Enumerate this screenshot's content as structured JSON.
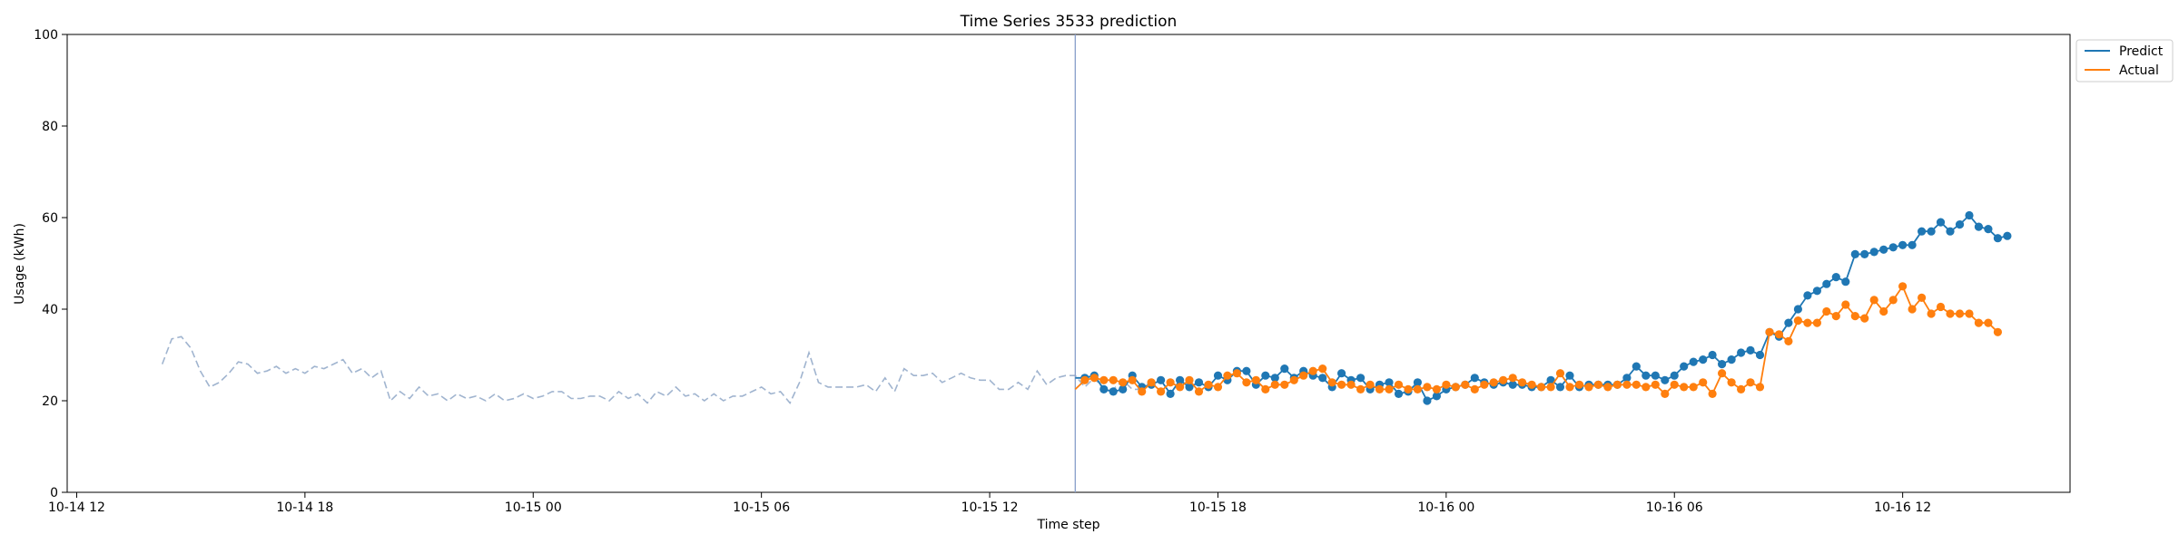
{
  "chart_data": {
    "type": "line",
    "title": "Time Series 3533 prediction",
    "xlabel": "Time step",
    "ylabel": "Usage (kWh)",
    "ylim": [
      0,
      100
    ],
    "yticks": [
      0,
      20,
      40,
      60,
      80,
      100
    ],
    "x_unit": "hours since 10-14 12:00",
    "xlim": [
      -0.25,
      52.4
    ],
    "xticks": [
      {
        "pos": 0,
        "label": "10-14 12"
      },
      {
        "pos": 6,
        "label": "10-14 18"
      },
      {
        "pos": 12,
        "label": "10-15 00"
      },
      {
        "pos": 18,
        "label": "10-15 06"
      },
      {
        "pos": 24,
        "label": "10-15 12"
      },
      {
        "pos": 30,
        "label": "10-15 18"
      },
      {
        "pos": 36,
        "label": "10-16 00"
      },
      {
        "pos": 42,
        "label": "10-16 06"
      },
      {
        "pos": 48,
        "label": "10-16 12"
      }
    ],
    "split_x": 26.25,
    "history": {
      "start": 2.25,
      "step": 0.25,
      "values": [
        28,
        33.5,
        34,
        31.5,
        26.5,
        23,
        24,
        26,
        28.5,
        28,
        26,
        26.5,
        27.5,
        26,
        27,
        26,
        27.5,
        27,
        28,
        29,
        26,
        27,
        25,
        26.5,
        20,
        22,
        20.5,
        23,
        21,
        21.5,
        20,
        21.5,
        20.5,
        21,
        20,
        21.5,
        20,
        20.5,
        21.5,
        20.5,
        21,
        22,
        22,
        20.5,
        20.5,
        21,
        21,
        20,
        22,
        20.5,
        21.5,
        19.5,
        22,
        21,
        23,
        21,
        21.5,
        20,
        21.5,
        20,
        21,
        21,
        22,
        23,
        21.5,
        22,
        19.5,
        24,
        30.5,
        24,
        23,
        23,
        23,
        23,
        23.5,
        22,
        25,
        22,
        27,
        25.5,
        25.5,
        26,
        24,
        25,
        26,
        25,
        24.5,
        24.5,
        22.5,
        22.5,
        24,
        22.5,
        26.5,
        23.5,
        25,
        25.5,
        25.5,
        23,
        25,
        22.5,
        22.5,
        24.5,
        22.5,
        22.5
      ]
    },
    "series": [
      {
        "name": "Predict",
        "color": "#1f77b4",
        "start": 26.25,
        "step": 0.25,
        "values": [
          25,
          25,
          25.5,
          22.5,
          22,
          22.5,
          25.5,
          23,
          23.5,
          24.5,
          21.5,
          24.5,
          23,
          24,
          23,
          25.5,
          24.5,
          26.5,
          26.5,
          23.5,
          25.5,
          25,
          27,
          25,
          26.5,
          25.5,
          25,
          23,
          26,
          24.5,
          25,
          22.5,
          23.5,
          24,
          21.5,
          22,
          24,
          20,
          21,
          22.5,
          23,
          23.5,
          25,
          24,
          23.5,
          24,
          23.5,
          23.5,
          23,
          23,
          24.5,
          23,
          25.5,
          23,
          23.5,
          23.5,
          23.5,
          23.5,
          25,
          27.5,
          25.5,
          25.5,
          24.5,
          25.5,
          27.5,
          28.5,
          29,
          30,
          28,
          29,
          30.5,
          31,
          30,
          35,
          34,
          37,
          40,
          43,
          44,
          45.5,
          47,
          46,
          52,
          52,
          52.5,
          53,
          53.5,
          54,
          54,
          57,
          57,
          59,
          57,
          58.5,
          60.5,
          58,
          57.5,
          55.5,
          56
        ]
      },
      {
        "name": "Actual",
        "color": "#ff7f0e",
        "start": 26.25,
        "step": 0.25,
        "values": [
          22.5,
          24.5,
          25,
          24.5,
          24.5,
          24,
          24.5,
          22,
          24,
          22,
          24,
          23,
          24.5,
          22,
          23.5,
          23,
          25.5,
          26,
          24,
          24.5,
          22.5,
          23.5,
          23.5,
          24.5,
          25.5,
          26.5,
          27,
          24,
          23.5,
          23.5,
          22.5,
          23.5,
          22.5,
          22.5,
          23.5,
          22.5,
          22.5,
          23,
          22.5,
          23.5,
          23,
          23.5,
          22.5,
          23.5,
          24,
          24.5,
          25,
          24,
          23.5,
          23,
          23,
          26,
          23,
          23.5,
          23,
          23.5,
          23,
          23.5,
          23.5,
          23.5,
          23,
          23.5,
          21.5,
          23.5,
          23,
          23,
          24,
          21.5,
          26,
          24,
          22.5,
          24,
          23,
          35,
          34.5,
          33,
          37.5,
          37,
          37,
          39.5,
          38.5,
          41,
          38.5,
          38,
          42,
          39.5,
          42,
          45,
          40,
          42.5,
          39,
          40.5,
          39,
          39,
          39,
          37,
          37,
          35
        ]
      }
    ],
    "legend": {
      "position": "top-right-outside"
    }
  }
}
